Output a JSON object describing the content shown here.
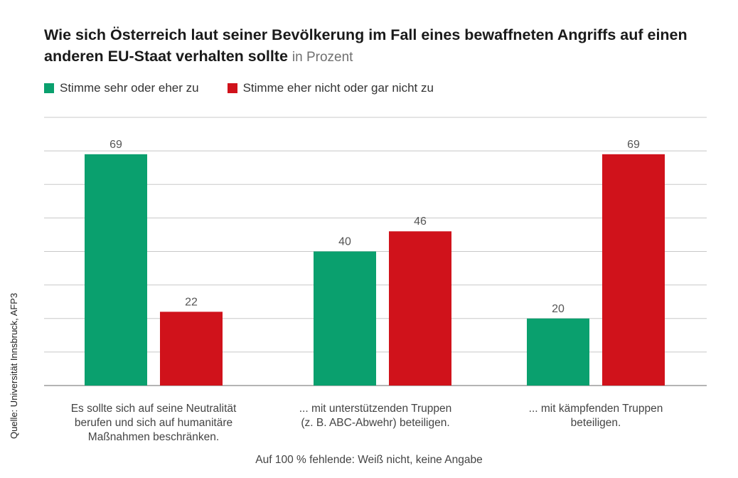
{
  "title": "Wie sich Österreich laut seiner Bevölkerung im Fall eines bewaffneten Angriffs auf einen anderen EU-Staat verhalten sollte",
  "unit": "in Prozent",
  "colors": {
    "green": "#0aa06e",
    "red": "#d0121b",
    "grid": "#c8c8c8",
    "axis": "#888888"
  },
  "source": "Quelle: Universität Innsbruck, AFP3",
  "note": "Auf 100 % fehlende: Weiß nicht, keine Angabe",
  "chart_data": {
    "type": "bar",
    "title": "Wie sich Österreich laut seiner Bevölkerung im Fall eines bewaffneten Angriffs auf einen anderen EU-Staat verhalten sollte",
    "categories": [
      "Es sollte sich auf seine Neutralität\nberufen und sich auf humanitäre\nMaßnahmen beschränken.",
      "... mit unterstützenden Truppen\n(z. B. ABC-Abwehr) beteiligen.",
      "... mit kämpfenden Truppen\nbeteiligen."
    ],
    "series": [
      {
        "name": "Stimme sehr oder eher zu",
        "color": "#0aa06e",
        "values": [
          69,
          40,
          20
        ]
      },
      {
        "name": "Stimme eher nicht oder gar nicht zu",
        "color": "#d0121b",
        "values": [
          22,
          46,
          69
        ]
      }
    ],
    "ylim": [
      0,
      80
    ],
    "grid": true,
    "legend": "top-left",
    "xlabel": "",
    "ylabel": ""
  }
}
